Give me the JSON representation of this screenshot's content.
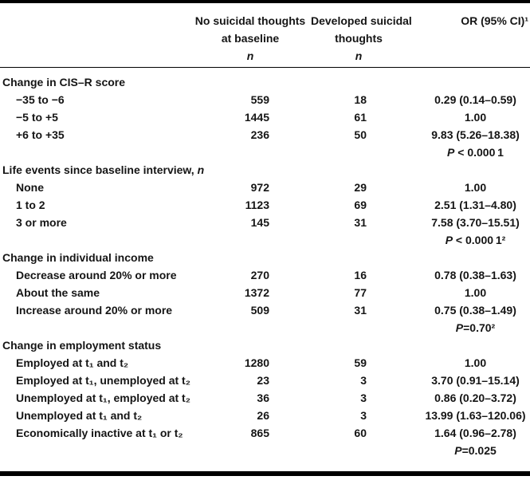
{
  "colors": {
    "background": "#ffffff",
    "text": "#151515",
    "rule": "#000000"
  },
  "header": {
    "no_suicidal": {
      "line1": "No suicidal thoughts",
      "line2": "at baseline",
      "n_symbol": "n"
    },
    "developed": {
      "line1": "Developed suicidal",
      "line2": "thoughts",
      "n_symbol": "n"
    },
    "or_ci": "OR (95% CI)¹"
  },
  "rows": [
    {
      "type": "section",
      "label": "Change in CIS–R score"
    },
    {
      "type": "data",
      "label": "−35 to −6",
      "n_baseline": "559",
      "n_developed": "18",
      "or": "0.29 (0.14–0.59)"
    },
    {
      "type": "data",
      "label": "−5 to +5",
      "n_baseline": "1445",
      "n_developed": "61",
      "or": "1.00"
    },
    {
      "type": "data",
      "label": "+6 to +35",
      "n_baseline": "236",
      "n_developed": "50",
      "or": "9.83 (5.26–18.38)"
    },
    {
      "type": "p",
      "p": "P",
      "p_rest": " < 0.000 1"
    },
    {
      "type": "section",
      "label": "Life events since baseline interview, ",
      "label_italic": "n"
    },
    {
      "type": "data",
      "label": "None",
      "n_baseline": "972",
      "n_developed": "29",
      "or": "1.00"
    },
    {
      "type": "data",
      "label": "1 to 2",
      "n_baseline": "1123",
      "n_developed": "69",
      "or": "2.51 (1.31–4.80)"
    },
    {
      "type": "data",
      "label": "3 or more",
      "n_baseline": "145",
      "n_developed": "31",
      "or": "7.58 (3.70–15.51)"
    },
    {
      "type": "p",
      "p": "P",
      "p_rest": " < 0.000 1²"
    },
    {
      "type": "section",
      "label": "Change in individual income"
    },
    {
      "type": "data",
      "label": "Decrease around 20% or more",
      "n_baseline": "270",
      "n_developed": "16",
      "or": "0.78 (0.38–1.63)"
    },
    {
      "type": "data",
      "label": "About the same",
      "n_baseline": "1372",
      "n_developed": "77",
      "or": "1.00"
    },
    {
      "type": "data",
      "label": "Increase around 20% or more",
      "n_baseline": "509",
      "n_developed": "31",
      "or": "0.75 (0.38–1.49)"
    },
    {
      "type": "p",
      "p": "P",
      "p_rest": "=0.70²"
    },
    {
      "type": "section",
      "label": "Change in employment status"
    },
    {
      "type": "data",
      "label": "Employed at t₁ and t₂",
      "n_baseline": "1280",
      "n_developed": "59",
      "or": "1.00"
    },
    {
      "type": "data",
      "label": "Employed at t₁, unemployed at t₂",
      "n_baseline": "23",
      "n_developed": "3",
      "or": "3.70 (0.91–15.14)"
    },
    {
      "type": "data",
      "label": "Unemployed at t₁, employed at t₂",
      "n_baseline": "36",
      "n_developed": "3",
      "or": "0.86 (0.20–3.72)"
    },
    {
      "type": "data",
      "label": "Unemployed at t₁ and t₂",
      "n_baseline": "26",
      "n_developed": "3",
      "or": "13.99 (1.63–120.06)"
    },
    {
      "type": "data",
      "label": "Economically inactive at t₁ or t₂",
      "n_baseline": "865",
      "n_developed": "60",
      "or": "1.64 (0.96–2.78)"
    },
    {
      "type": "p",
      "p": "P",
      "p_rest": "=0.025"
    }
  ]
}
